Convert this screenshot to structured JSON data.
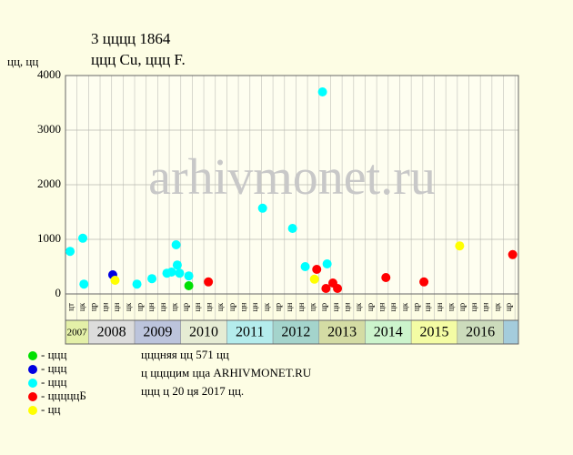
{
  "chart_data": {
    "type": "scatter",
    "title": "3 цццц 1864",
    "subtitle": "ццц Cu, ццц F.",
    "ylabel": "цц, цц",
    "watermark": "arhivmonet.ru",
    "notes": [
      "цццняя цц 571 цц",
      "ц ццццим цца ARHIVMONET.RU",
      "ццц ц 20 ця 2017 цц."
    ],
    "xlim": [
      0,
      39.3
    ],
    "ylim": [
      0,
      4000
    ],
    "yticks": [
      0,
      1000,
      2000,
      3000,
      4000
    ],
    "grid": true,
    "column_labels": [
      "цт",
      "цк",
      "цр",
      "цн",
      "цн",
      "цк",
      "цр",
      "цн",
      "цн",
      "цк",
      "цр",
      "цн",
      "цн",
      "цк",
      "цр",
      "цн",
      "цн",
      "цк",
      "цр",
      "цн",
      "цн",
      "цк",
      "цр",
      "цн",
      "цн",
      "цк",
      "цр",
      "цн",
      "цн",
      "цк",
      "цр",
      "цн",
      "цн",
      "цк",
      "цр",
      "цн",
      "цн",
      "цк",
      "цр"
    ],
    "year_bands": [
      {
        "label": "2007",
        "start": 0,
        "end": 2,
        "color": "#e4f0a8"
      },
      {
        "label": "2008",
        "start": 2,
        "end": 6,
        "color": "#dcdcdc"
      },
      {
        "label": "2009",
        "start": 6,
        "end": 10,
        "color": "#bcc4dc"
      },
      {
        "label": "2010",
        "start": 10,
        "end": 14,
        "color": "#e6ecd4"
      },
      {
        "label": "2011",
        "start": 14,
        "end": 18,
        "color": "#b4ecec"
      },
      {
        "label": "2012",
        "start": 18,
        "end": 22,
        "color": "#a4d4cc"
      },
      {
        "label": "2013",
        "start": 22,
        "end": 26,
        "color": "#d4dca4"
      },
      {
        "label": "2014",
        "start": 26,
        "end": 30,
        "color": "#ccf4cc"
      },
      {
        "label": "2015",
        "start": 30,
        "end": 34,
        "color": "#f4fca4"
      },
      {
        "label": "2016",
        "start": 34,
        "end": 38,
        "color": "#ccdcbc"
      },
      {
        "label": null,
        "start": 38,
        "end": 39.3,
        "color": "#a4ccdc"
      }
    ],
    "series": [
      {
        "name": "- ццц",
        "color": "#00e000",
        "x": [
          10.7
        ],
        "values": [
          150
        ]
      },
      {
        "name": "- ццц",
        "color": "#0000e0",
        "x": [
          4.1
        ],
        "values": [
          350
        ]
      },
      {
        "name": "- ццц",
        "color": "#00ffff",
        "x": [
          0.4,
          1.5,
          1.6,
          6.2,
          7.5,
          8.8,
          9.2,
          9.6,
          9.7,
          9.9,
          10.7,
          17.1,
          19.7,
          20.8,
          22.3,
          22.7
        ],
        "values": [
          780,
          1020,
          180,
          180,
          280,
          380,
          400,
          900,
          530,
          380,
          330,
          1570,
          1200,
          500,
          3700,
          550
        ]
      },
      {
        "name": "- цццццБ",
        "color": "#ff0000",
        "x": [
          12.4,
          21.8,
          22.6,
          23.2,
          23.6,
          27.8,
          31.1,
          38.8
        ],
        "values": [
          220,
          450,
          100,
          200,
          100,
          300,
          220,
          720
        ]
      },
      {
        "name": "- цц",
        "color": "#ffff00",
        "x": [
          4.3,
          21.6,
          34.2
        ],
        "values": [
          250,
          270,
          880
        ]
      }
    ]
  }
}
